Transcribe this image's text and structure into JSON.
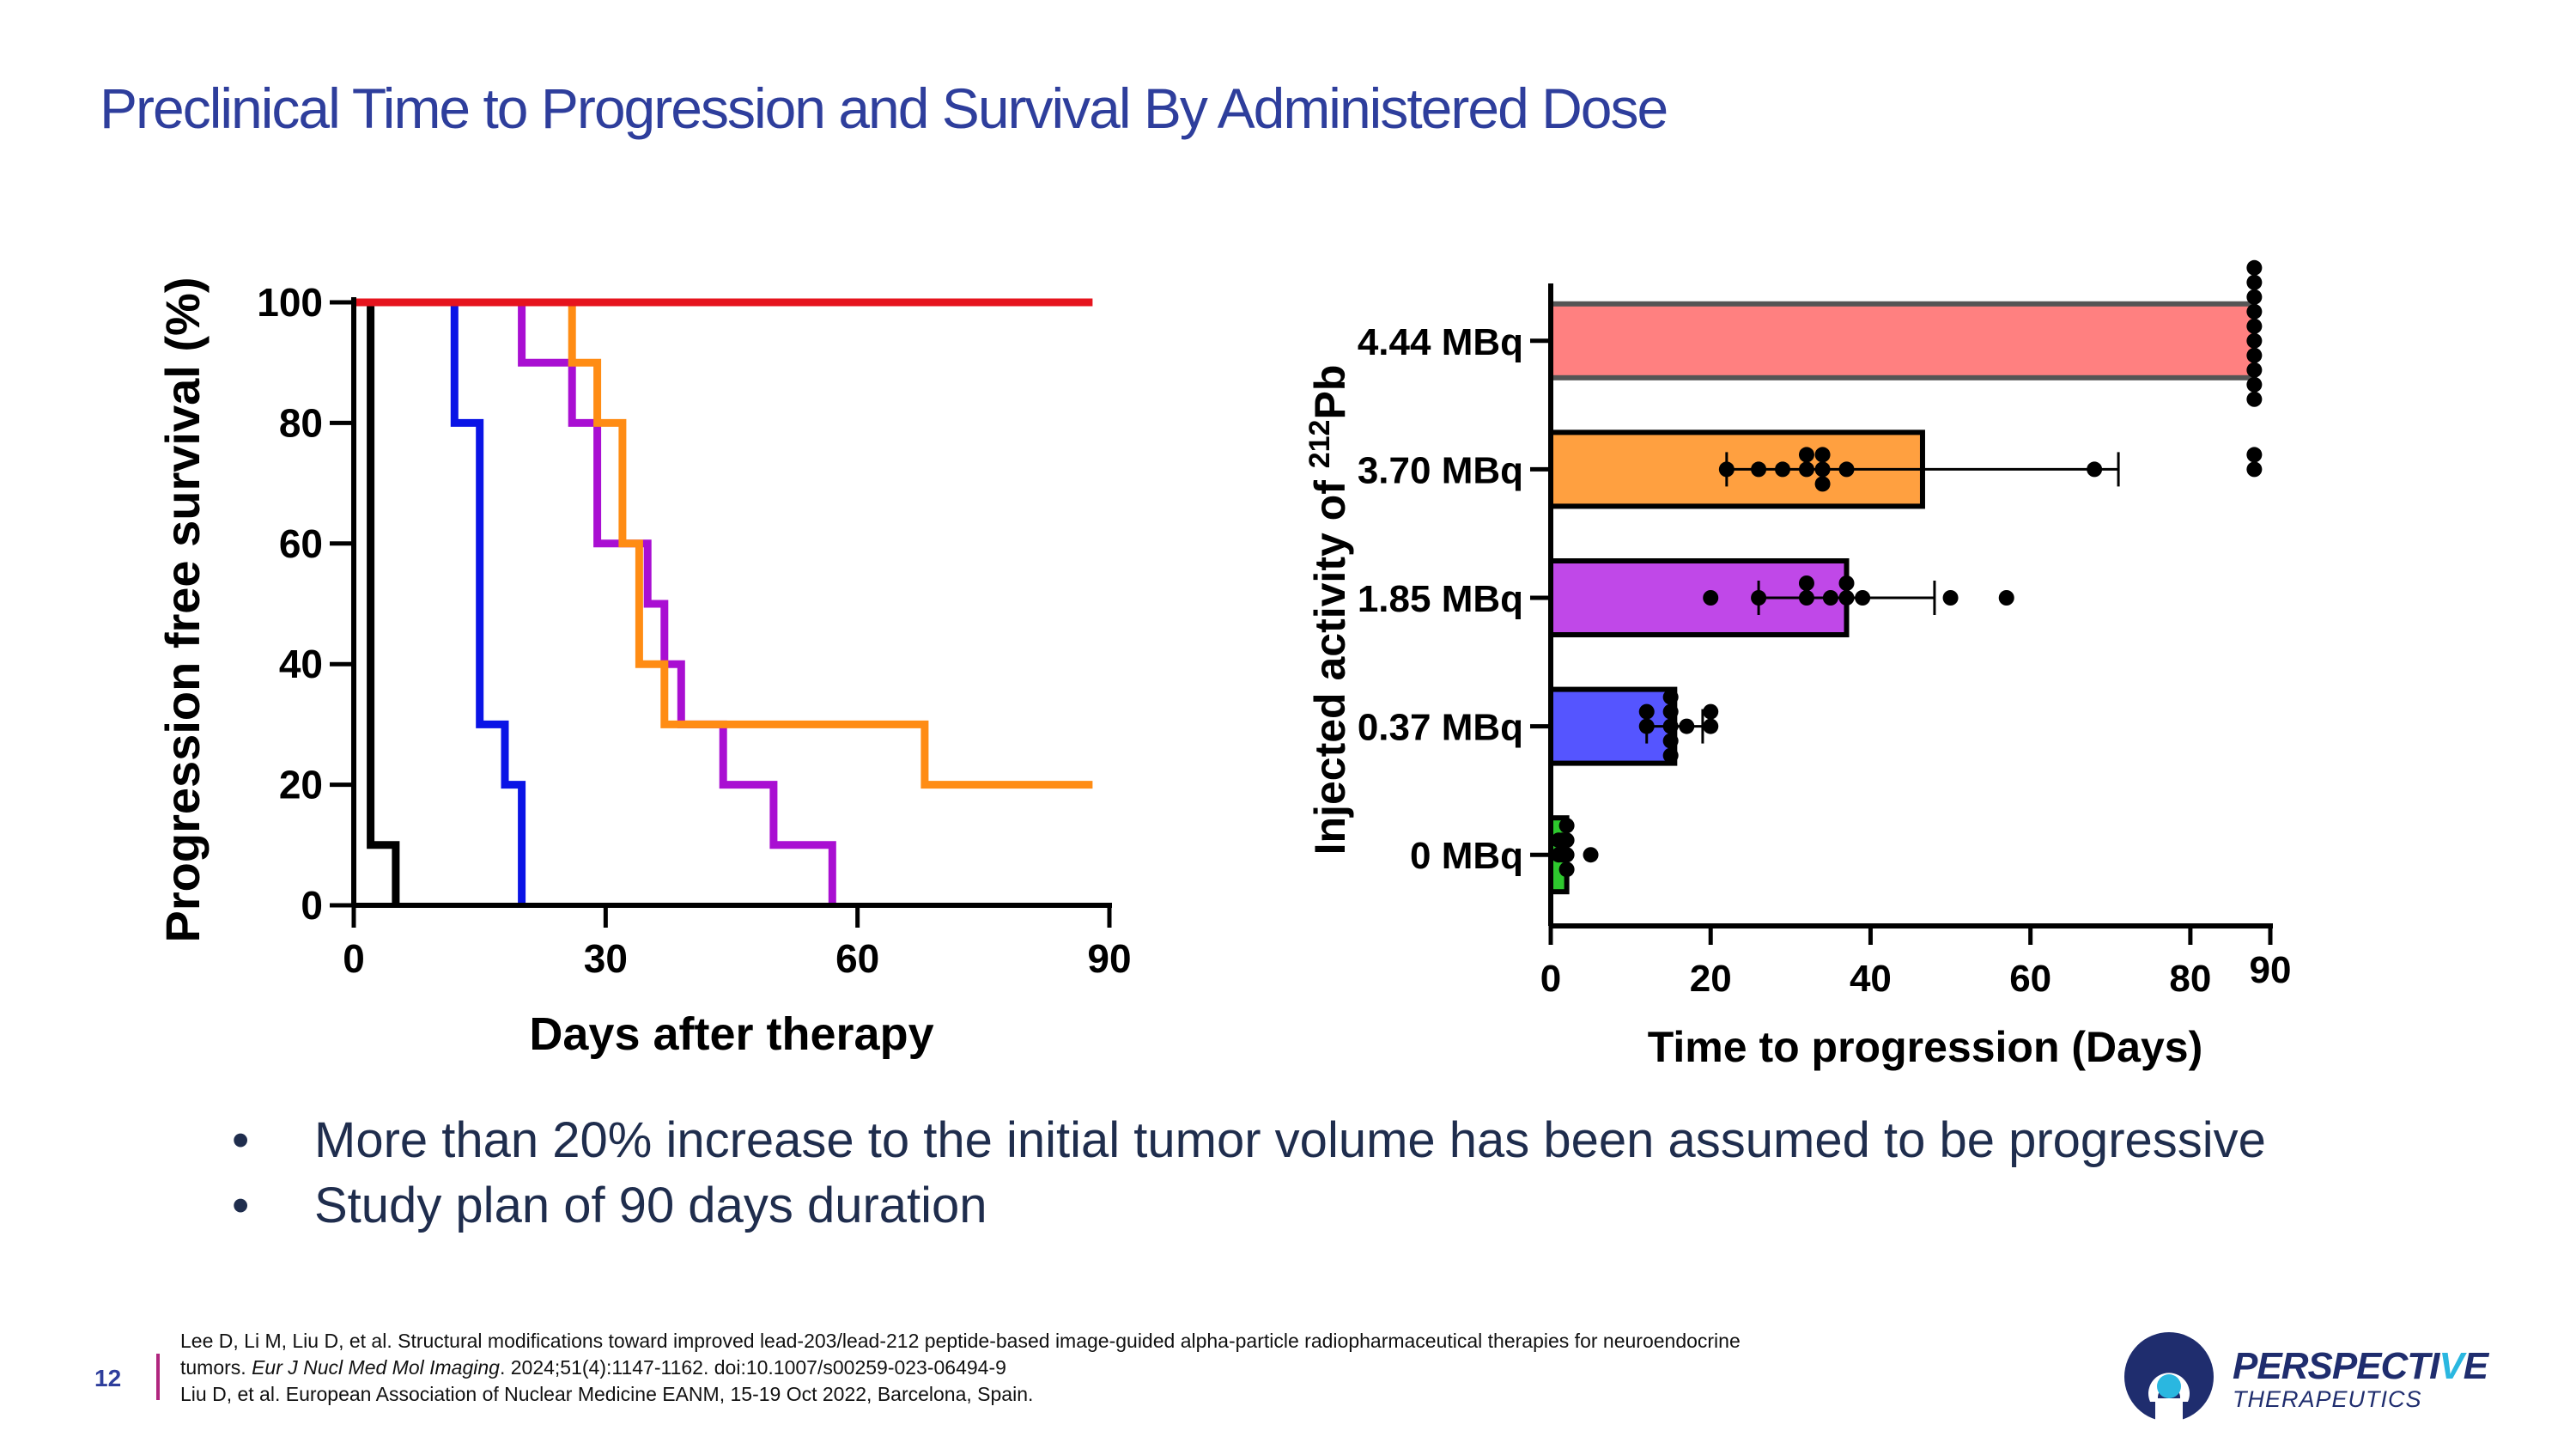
{
  "title": "Preclinical Time to Progression and Survival By Administered Dose",
  "bullets": [
    "More than 20% increase to the initial tumor volume has been assumed to be progressive",
    "Study plan of 90 days duration"
  ],
  "bullet_symbol": "•",
  "footer": {
    "page_number": "12",
    "ref1_line1": "Lee D, Li M, Liu D, et al. Structural modifications toward improved lead-203/lead-212 peptide-based image-guided alpha-particle radiopharmaceutical therapies for neuroendocrine",
    "ref1_line2_pre": "tumors. ",
    "ref1_journal": "Eur J Nucl Med Mol Imaging",
    "ref1_line2_post": ". 2024;51(4):1147-1162. doi:10.1007/s00259-023-06494-9",
    "ref2": "Liu D, et al. European Association of Nuclear Medicine EANM, 15-19 Oct 2022, Barcelona, Spain."
  },
  "logo": {
    "word_pre": "PERSPECTI",
    "word_accent": "V",
    "word_post": "E",
    "sub": "THERAPEUTICS",
    "brand_color": "#1f2d6e",
    "accent_color": "#2ab7e0"
  },
  "chart_data": [
    {
      "type": "line",
      "subtype": "kaplan-meier",
      "title": "",
      "xlabel": "Days after therapy",
      "ylabel": "Progression free survival  (%)",
      "xlim": [
        0,
        90
      ],
      "ylim": [
        0,
        100
      ],
      "xticks": [
        0,
        30,
        60,
        90
      ],
      "yticks": [
        0,
        20,
        40,
        60,
        80,
        100
      ],
      "series": [
        {
          "name": "0 MBq",
          "color": "#000000",
          "x": [
            0,
            2,
            2,
            5,
            5
          ],
          "y": [
            100,
            100,
            10,
            10,
            0
          ]
        },
        {
          "name": "0.37 MBq",
          "color": "#0a14e6",
          "x": [
            0,
            12,
            12,
            15,
            15,
            18,
            18,
            20,
            20
          ],
          "y": [
            100,
            100,
            80,
            80,
            30,
            30,
            20,
            20,
            0
          ]
        },
        {
          "name": "1.85 MBq",
          "color": "#a90fd2",
          "x": [
            0,
            20,
            20,
            26,
            26,
            29,
            29,
            35,
            35,
            37,
            37,
            39,
            39,
            44,
            44,
            50,
            50,
            57,
            57
          ],
          "y": [
            100,
            100,
            90,
            90,
            80,
            80,
            60,
            60,
            50,
            50,
            40,
            40,
            30,
            30,
            20,
            20,
            10,
            10,
            0
          ]
        },
        {
          "name": "3.70 MBq",
          "color": "#ff8c14",
          "x": [
            0,
            26,
            26,
            29,
            29,
            32,
            32,
            34,
            34,
            37,
            37,
            68,
            68,
            88
          ],
          "y": [
            100,
            100,
            90,
            90,
            80,
            80,
            60,
            60,
            40,
            40,
            30,
            30,
            20,
            20
          ]
        },
        {
          "name": "4.44 MBq",
          "color": "#e6141e",
          "x": [
            0,
            88
          ],
          "y": [
            100,
            100
          ]
        }
      ]
    },
    {
      "type": "bar",
      "orientation": "horizontal",
      "title": "",
      "xlabel": "Time to progression  (Days)",
      "ylabel_pre": "Injected activity of ",
      "ylabel_sup": "212",
      "ylabel_post": "Pb",
      "xlim": [
        0,
        90
      ],
      "xticks": [
        0,
        20,
        40,
        60,
        80,
        90
      ],
      "categories": [
        "4.44 MBq",
        "3.70 MBq",
        "1.85 MBq",
        "0.37 MBq",
        "0 MBq"
      ],
      "values": [
        88,
        46.5,
        37,
        15.5,
        2
      ],
      "error_low": [
        null,
        22,
        26,
        12,
        null
      ],
      "error_high": [
        null,
        71,
        48,
        19,
        null
      ],
      "colors": [
        "#ff8080",
        "#ffa040",
        "#c048e8",
        "#5555ff",
        "#2ec82e"
      ],
      "points": [
        [
          88,
          88,
          88,
          88,
          88,
          88,
          88,
          88,
          88,
          88
        ],
        [
          22,
          26,
          29,
          32,
          32,
          34,
          34,
          37,
          34,
          68,
          88,
          88
        ],
        [
          20,
          26,
          32,
          32,
          35,
          37,
          37,
          39,
          50,
          57
        ],
        [
          12,
          12,
          15,
          15,
          15,
          15,
          15,
          17,
          20,
          20
        ],
        [
          1,
          1,
          1.5,
          1.5,
          2,
          2,
          2,
          2,
          5
        ]
      ]
    }
  ]
}
